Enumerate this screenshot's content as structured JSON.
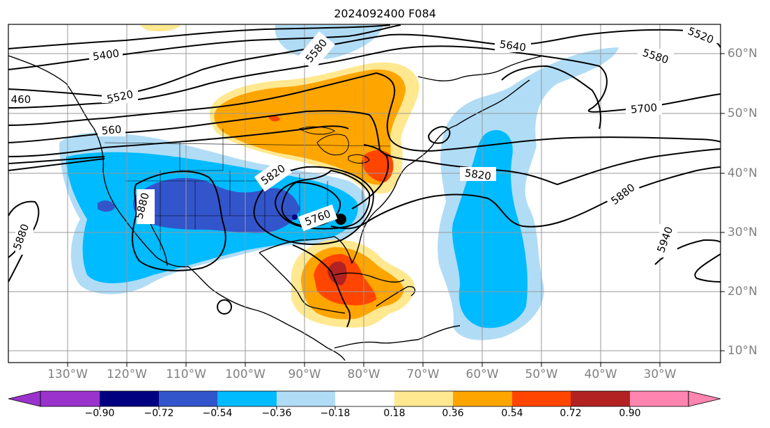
{
  "title": "2024092400 F084",
  "lon_labels": [
    "130°W",
    "120°W",
    "110°W",
    "100°W",
    "90°W",
    "80°W",
    "70°W",
    "60°W",
    "50°W",
    "40°W",
    "30°W"
  ],
  "lat_labels": [
    "60°N",
    "50°N",
    "40°N",
    "30°N",
    "20°N",
    "10°N"
  ],
  "contour_labels": {
    "c5400": "5400",
    "c5460": "460",
    "c5520a": "5520",
    "c5560": "560",
    "c5580a": "5580",
    "c5640": "5640",
    "c5580b": "5580",
    "c5520b": "5520",
    "c5700": "5700",
    "c5820a": "5820",
    "c5820b": "5820",
    "c5760": "5760",
    "c5880a": "5880",
    "c5880b": "5880",
    "c5880c": "5880",
    "c5940": "5940"
  },
  "colorbar": {
    "labels": [
      "−0.90",
      "−0.72",
      "−0.54",
      "−0.36",
      "−0.18",
      "0.18",
      "0.36",
      "0.54",
      "0.72",
      "0.90"
    ],
    "colors": [
      "#9933cc",
      "#000080",
      "#3355cc",
      "#00bbff",
      "#b0dcf6",
      "#ffffff",
      "#ffe890",
      "#ffa500",
      "#ff4500",
      "#b22222",
      "#ff85b0"
    ]
  },
  "fill_colors": {
    "lightblue": "#b0dcf6",
    "blue": "#00bbff",
    "medblue": "#3355cc",
    "yellow": "#ffe890",
    "orange": "#ffa500",
    "redorange": "#ff4500",
    "darkred": "#b22222"
  }
}
